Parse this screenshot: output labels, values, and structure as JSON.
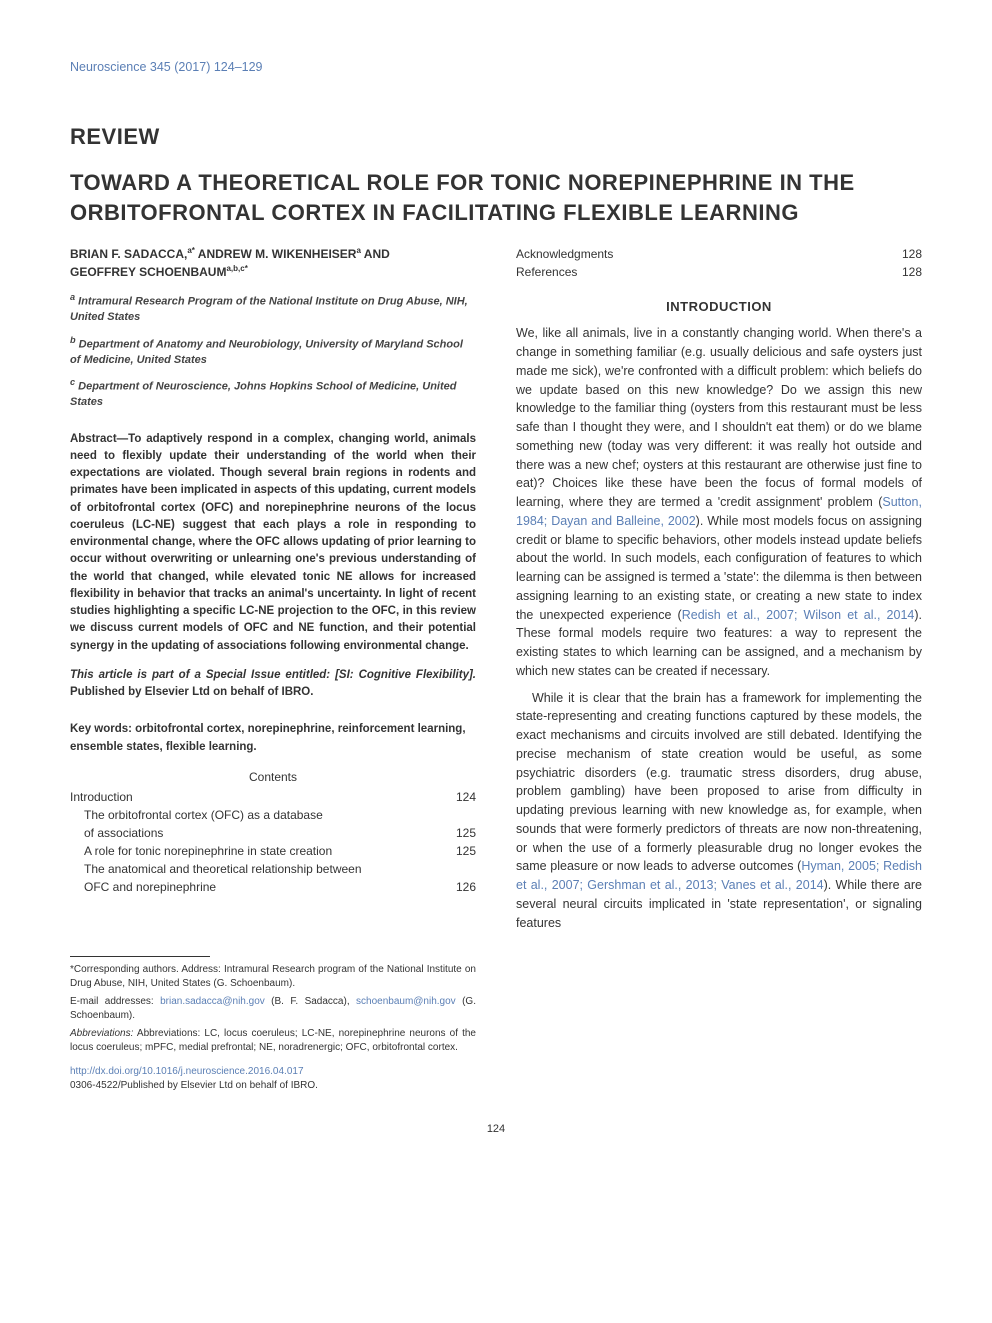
{
  "journal_ref": "Neuroscience 345 (2017) 124–129",
  "article_type": "REVIEW",
  "title": "TOWARD A THEORETICAL ROLE FOR TONIC NOREPINEPHRINE IN THE ORBITOFRONTAL CORTEX IN FACILITATING FLEXIBLE LEARNING",
  "authors_line1": "BRIAN F. SADACCA,",
  "authors_sup1": "a*",
  "authors_line1b": " ANDREW M. WIKENHEISER",
  "authors_sup1b": "a",
  "authors_line1c": " AND",
  "authors_line2": "GEOFFREY SCHOENBAUM",
  "authors_sup2": "a,b,c*",
  "affiliations": {
    "a": "Intramural Research Program of the National Institute on Drug Abuse, NIH, United States",
    "b": "Department of Anatomy and Neurobiology, University of Maryland School of Medicine, United States",
    "c": "Department of Neuroscience, Johns Hopkins School of Medicine, United States"
  },
  "abstract": "Abstract—To adaptively respond in a complex, changing world, animals need to flexibly update their understanding of the world when their expectations are violated. Though several brain regions in rodents and primates have been implicated in aspects of this updating, current models of orbitofrontal cortex (OFC) and norepinephrine neurons of the locus coeruleus (LC-NE) suggest that each plays a role in responding to environmental change, where the OFC allows updating of prior learning to occur without overwriting or unlearning one's previous understanding of the world that changed, while elevated tonic NE allows for increased flexibility in behavior that tracks an animal's uncertainty. In light of recent studies highlighting a specific LC-NE projection to the OFC, in this review we discuss current models of OFC and NE function, and their potential synergy in the updating of associations following environmental change.",
  "special_issue_prefix": "This article is part of a Special Issue entitled: [SI: Cognitive Flexibility].",
  "special_issue_suffix": " Published by Elsevier Ltd on behalf of IBRO.",
  "keywords": "Key words: orbitofrontal cortex, norepinephrine, reinforcement learning, ensemble states, flexible learning.",
  "contents_label": "Contents",
  "toc": [
    {
      "label": "Introduction",
      "page": "124",
      "indent": false
    },
    {
      "label": "The orbitofrontal cortex (OFC) as a database",
      "page": "",
      "indent": true
    },
    {
      "label": "of associations",
      "page": "125",
      "indent": true
    },
    {
      "label": "A role for tonic norepinephrine in state creation",
      "page": "125",
      "indent": true
    },
    {
      "label": "The anatomical and theoretical relationship between",
      "page": "",
      "indent": true
    },
    {
      "label": "OFC and norepinephrine",
      "page": "126",
      "indent": true
    }
  ],
  "toc_right": [
    {
      "label": "Acknowledgments",
      "page": "128"
    },
    {
      "label": "References",
      "page": "128"
    }
  ],
  "footnotes": {
    "corresponding": "Corresponding authors. Address: Intramural Research program of the National Institute on Drug Abuse, NIH, United States (G. Schoenbaum).",
    "email_label": "E-mail addresses: ",
    "email1": "brian.sadacca@nih.gov",
    "email1_suffix": " (B. F. Sadacca), ",
    "email2": "schoenbaum@nih.gov",
    "email2_suffix": " (G. Schoenbaum).",
    "abbrev": "Abbreviations: LC, locus coeruleus; LC-NE, norepinephrine neurons of the locus coeruleus; mPFC, medial prefrontal; NE, noradrenergic; OFC, orbitofrontal cortex."
  },
  "doi": "http://dx.doi.org/10.1016/j.neuroscience.2016.04.017",
  "copyright": "0306-4522/Published by Elsevier Ltd on behalf of IBRO.",
  "intro_heading": "INTRODUCTION",
  "intro_p1_a": "We, like all animals, live in a constantly changing world. When there's a change in something familiar (e.g. usually delicious and safe oysters just made me sick), we're confronted with a difficult problem: which beliefs do we update based on this new knowledge? Do we assign this new knowledge to the familiar thing (oysters from this restaurant must be less safe than I thought they were, and I shouldn't eat them) or do we blame something new (today was very different: it was really hot outside and there was a new chef; oysters at this restaurant are otherwise just fine to eat)? Choices like these have been the focus of formal models of learning, where they are termed a 'credit assignment' problem (",
  "intro_p1_cite1": "Sutton, 1984; Dayan and Balleine, 2002",
  "intro_p1_b": "). While most models focus on assigning credit or blame to specific behaviors, other models instead update beliefs about the world. In such models, each configuration of features to which learning can be assigned is termed a 'state': the dilemma is then between assigning learning to an existing state, or creating a new state to index the unexpected experience (",
  "intro_p1_cite2": "Redish et al., 2007; Wilson et al., 2014",
  "intro_p1_c": "). These formal models require two features: a way to represent the existing states to which learning can be assigned, and a mechanism by which new states can be created if necessary.",
  "intro_p2_a": "While it is clear that the brain has a framework for implementing the state-representing and creating functions captured by these models, the exact mechanisms and circuits involved are still debated. Identifying the precise mechanism of state creation would be useful, as some psychiatric disorders (e.g. traumatic stress disorders, drug abuse, problem gambling) have been proposed to arise from difficulty in updating previous learning with new knowledge as, for example, when sounds that were formerly predictors of threats are now non-threatening, or when the use of a formerly pleasurable drug no longer evokes the same pleasure or now leads to adverse outcomes (",
  "intro_p2_cite1": "Hyman, 2005; Redish et al., 2007; Gershman et al., 2013; Vanes et al., 2014",
  "intro_p2_b": "). While there are several neural circuits implicated in 'state representation', or signaling features",
  "page_number": "124",
  "colors": {
    "link": "#5b7fb5",
    "text": "#333333",
    "bg": "#ffffff"
  },
  "fonts": {
    "body_size_pt": 12.5,
    "title_size_pt": 22,
    "small_size_pt": 11
  }
}
